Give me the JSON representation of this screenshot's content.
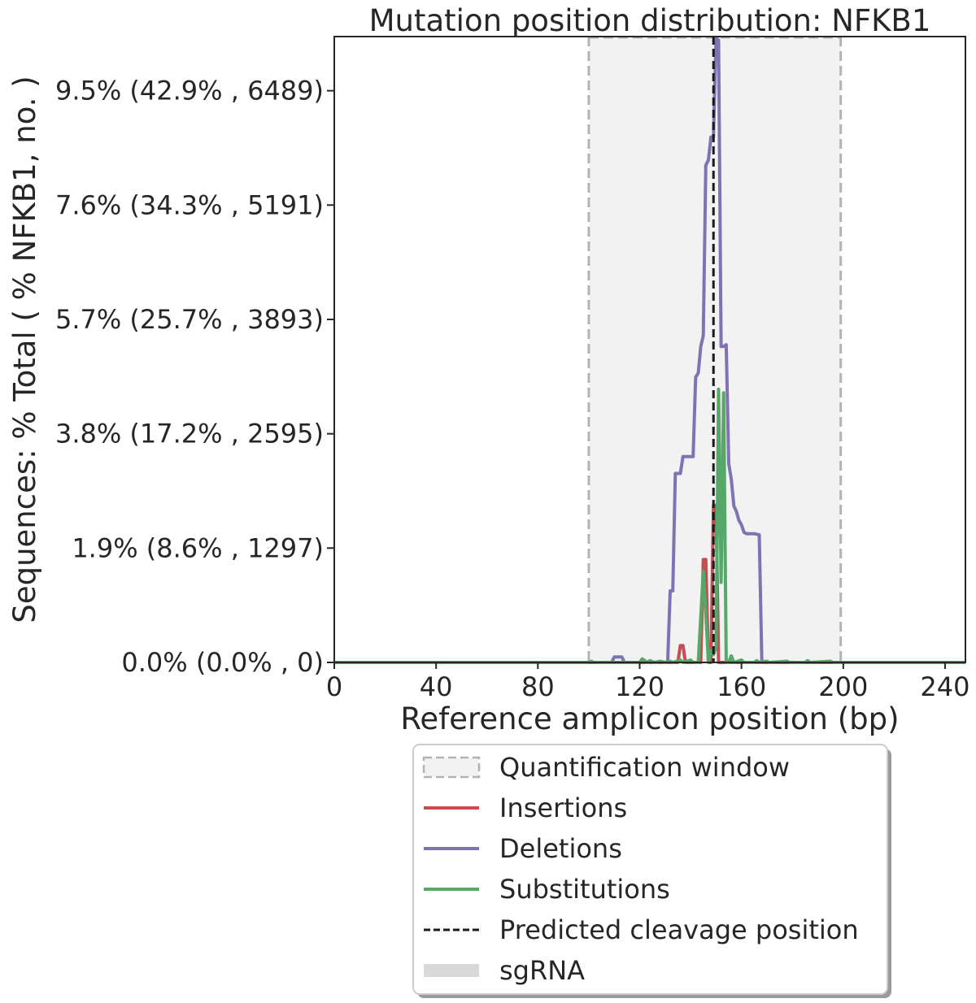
{
  "chart_data": {
    "type": "line",
    "title": "Mutation position distribution: NFKB1",
    "xlabel": "Reference amplicon position (bp)",
    "ylabel": "Sequences: % Total ( % NFKB1, no. )",
    "xlim": [
      0,
      248
    ],
    "ylim": [
      0,
      10.4
    ],
    "x_ticks": [
      0,
      40,
      80,
      120,
      160,
      200,
      240
    ],
    "y_ticks": [
      {
        "value": 0.0,
        "label": "0.0% (0.0% , 0)"
      },
      {
        "value": 1.9,
        "label": "1.9% (8.6% , 1297)"
      },
      {
        "value": 3.8,
        "label": "3.8% (17.2% , 2595)"
      },
      {
        "value": 5.7,
        "label": "5.7% (25.7% , 3893)"
      },
      {
        "value": 7.6,
        "label": "7.6% (34.3% , 5191)"
      },
      {
        "value": 9.5,
        "label": "9.5% (42.9% , 6489)"
      }
    ],
    "quantification_window": [
      100,
      199
    ],
    "predicted_cleavage_position": 149,
    "legend_position": "below plot",
    "series": [
      {
        "name": "Insertions",
        "color": "#c44e52",
        "points": [
          [
            0,
            0
          ],
          [
            135,
            0
          ],
          [
            136,
            0.28
          ],
          [
            137,
            0.28
          ],
          [
            138,
            0
          ],
          [
            144,
            0
          ],
          [
            145,
            1.71
          ],
          [
            146,
            1.71
          ],
          [
            147,
            0
          ],
          [
            148,
            0
          ],
          [
            149,
            2.61
          ],
          [
            150,
            2.61
          ],
          [
            151,
            0
          ],
          [
            248,
            0
          ]
        ]
      },
      {
        "name": "Deletions",
        "color": "#8172b2",
        "points": [
          [
            0,
            0
          ],
          [
            109,
            0
          ],
          [
            110,
            0.09
          ],
          [
            113,
            0.09
          ],
          [
            114,
            0
          ],
          [
            131,
            0
          ],
          [
            132,
            1.19
          ],
          [
            133,
            1.19
          ],
          [
            134,
            3.14
          ],
          [
            136,
            3.14
          ],
          [
            137,
            3.42
          ],
          [
            141,
            3.42
          ],
          [
            142,
            4.74
          ],
          [
            143,
            4.81
          ],
          [
            144,
            5.25
          ],
          [
            145,
            5.43
          ],
          [
            146,
            8.26
          ],
          [
            147,
            8.35
          ],
          [
            148,
            8.73
          ],
          [
            149,
            8.73
          ],
          [
            150,
            10.38
          ],
          [
            151,
            10.34
          ],
          [
            152,
            5.25
          ],
          [
            153,
            5.25
          ],
          [
            154,
            5.28
          ],
          [
            155,
            3.3
          ],
          [
            156,
            3.05
          ],
          [
            157,
            2.6
          ],
          [
            158,
            2.51
          ],
          [
            159,
            2.36
          ],
          [
            160,
            2.29
          ],
          [
            161,
            2.16
          ],
          [
            162,
            2.14
          ],
          [
            165,
            2.14
          ],
          [
            166,
            2.13
          ],
          [
            167,
            2.12
          ],
          [
            168,
            0
          ],
          [
            248,
            0
          ]
        ]
      },
      {
        "name": "Substitutions",
        "color": "#55a868",
        "points": [
          [
            0,
            0
          ],
          [
            100,
            0
          ],
          [
            101,
            0.02
          ],
          [
            102,
            0
          ],
          [
            120,
            0
          ],
          [
            121,
            0.06
          ],
          [
            122,
            0.03
          ],
          [
            123,
            0
          ],
          [
            124,
            0.03
          ],
          [
            126,
            0
          ],
          [
            128,
            0.02
          ],
          [
            130,
            0
          ],
          [
            132,
            0.02
          ],
          [
            133,
            0
          ],
          [
            136,
            0.04
          ],
          [
            137,
            0
          ],
          [
            140,
            0.04
          ],
          [
            141,
            0
          ],
          [
            143,
            0
          ],
          [
            144,
            0.75
          ],
          [
            145,
            1.52
          ],
          [
            146,
            0.82
          ],
          [
            147,
            0
          ],
          [
            148,
            0.2
          ],
          [
            149,
            0.13
          ],
          [
            150,
            0.25
          ],
          [
            151,
            4.54
          ],
          [
            152,
            1.33
          ],
          [
            153,
            4.48
          ],
          [
            154,
            0
          ],
          [
            155,
            0
          ],
          [
            156,
            0.11
          ],
          [
            157,
            0
          ],
          [
            160,
            0.04
          ],
          [
            161,
            0
          ],
          [
            165,
            0
          ],
          [
            166,
            0.03
          ],
          [
            167,
            0
          ],
          [
            170,
            0.02
          ],
          [
            171,
            0
          ],
          [
            178,
            0.02
          ],
          [
            179,
            0
          ],
          [
            185,
            0
          ],
          [
            186,
            0.03
          ],
          [
            187,
            0
          ],
          [
            195,
            0.02
          ],
          [
            196,
            0
          ],
          [
            248,
            0
          ]
        ]
      }
    ],
    "legend": [
      {
        "label": "Quantification window",
        "kind": "patch-dashed",
        "color": "#f2f2f2"
      },
      {
        "label": "Insertions",
        "kind": "line",
        "color": "#c44e52"
      },
      {
        "label": "Deletions",
        "kind": "line",
        "color": "#8172b2"
      },
      {
        "label": "Substitutions",
        "kind": "line",
        "color": "#55a868"
      },
      {
        "label": "Predicted cleavage position",
        "kind": "dashed",
        "color": "#1a1a1a"
      },
      {
        "label": "sgRNA",
        "kind": "band",
        "color": "#d9d9d9"
      }
    ]
  }
}
